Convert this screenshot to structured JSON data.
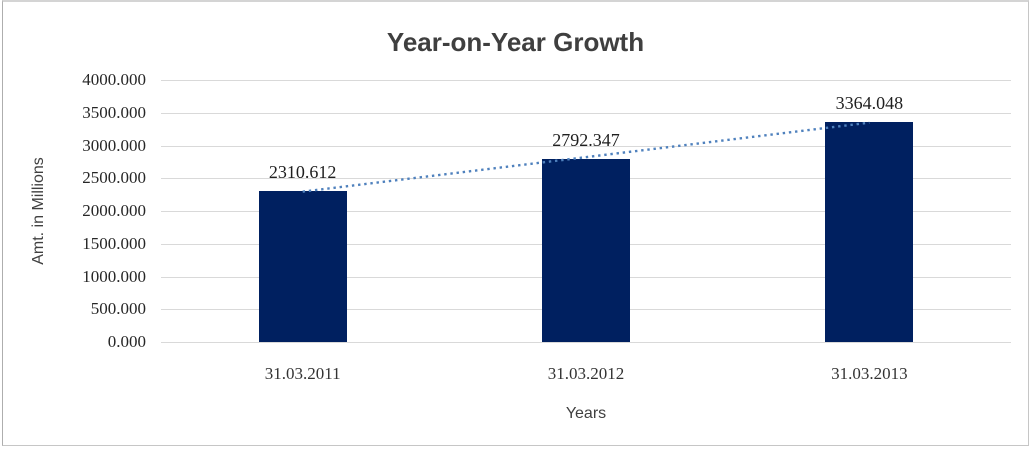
{
  "chart_data": {
    "type": "bar",
    "title": "Year-on-Year Growth",
    "categories": [
      "31.03.2011",
      "31.03.2012",
      "31.03.2013"
    ],
    "values": [
      2310.612,
      2792.347,
      3364.048
    ],
    "data_labels": [
      "2310.612",
      "2792.347",
      "3364.048"
    ],
    "xlabel": "Years",
    "ylabel": "Amt. in Millions",
    "ylim": [
      0,
      4000
    ],
    "ytick_step": 500,
    "ytick_labels": [
      "0.000",
      "500.000",
      "1000.000",
      "1500.000",
      "2000.000",
      "2500.000",
      "3000.000",
      "3500.000",
      "4000.000"
    ],
    "grid": true,
    "legend": "none",
    "trendline": {
      "type": "linear",
      "style": "dotted"
    },
    "colors": {
      "bar": "#002060",
      "trendline": "#4F81BD",
      "gridline": "#D9D9D9",
      "title_text": "#3F3F3F",
      "axis_text": "#404040",
      "number_text": "#262626"
    }
  }
}
